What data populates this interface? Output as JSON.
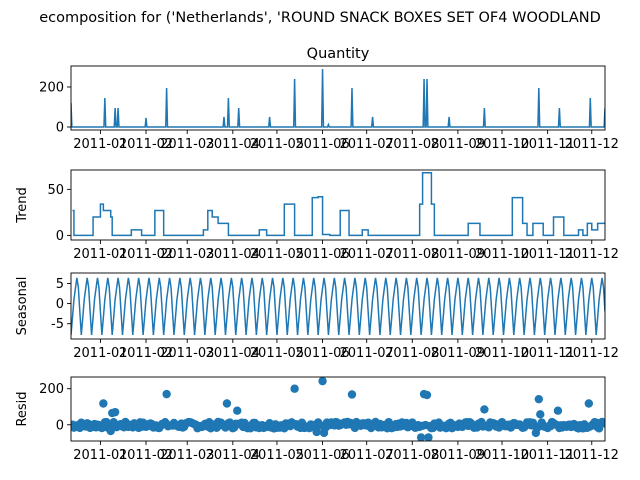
{
  "figure_title": "ecomposition for ('Netherlands', 'ROUND SNACK BOXES SET OF4 WOODLAND",
  "colors": {
    "line": "#1f77b4",
    "axis": "#000000",
    "background": "#ffffff"
  },
  "chart_data": [
    {
      "type": "line",
      "title": "Quantity",
      "ylabel": "",
      "xlim": [
        "2010-12-12",
        "2011-12-10"
      ],
      "ylim": [
        -15,
        305
      ],
      "yticks": [
        0,
        200
      ],
      "xtick_labels": [
        "2011-01",
        "2011-02",
        "2011-03",
        "2011-04",
        "2011-05",
        "2011-06",
        "2011-07",
        "2011-08",
        "2011-09",
        "2011-10",
        "2011-11",
        "2011-12"
      ],
      "series": [
        {
          "baseline": 0,
          "spikes": [
            {
              "date": "2010-12-12",
              "value": 120
            },
            {
              "date": "2011-01-04",
              "value": 145
            },
            {
              "date": "2011-01-11",
              "value": 95
            },
            {
              "date": "2011-01-13",
              "value": 95
            },
            {
              "date": "2011-02-01",
              "value": 45
            },
            {
              "date": "2011-02-15",
              "value": 195
            },
            {
              "date": "2011-03-26",
              "value": 50
            },
            {
              "date": "2011-03-29",
              "value": 145
            },
            {
              "date": "2011-04-05",
              "value": 95
            },
            {
              "date": "2011-04-26",
              "value": 50
            },
            {
              "date": "2011-05-13",
              "value": 240
            },
            {
              "date": "2011-06-01",
              "value": 290
            },
            {
              "date": "2011-06-05",
              "value": 12
            },
            {
              "date": "2011-06-21",
              "value": 195
            },
            {
              "date": "2011-07-05",
              "value": 50
            },
            {
              "date": "2011-08-09",
              "value": 240
            },
            {
              "date": "2011-08-11",
              "value": 240
            },
            {
              "date": "2011-08-26",
              "value": 50
            },
            {
              "date": "2011-09-19",
              "value": 95
            },
            {
              "date": "2011-10-26",
              "value": 195
            },
            {
              "date": "2011-11-09",
              "value": 95
            },
            {
              "date": "2011-11-30",
              "value": 145
            },
            {
              "date": "2011-12-10",
              "value": 95
            }
          ]
        }
      ]
    },
    {
      "type": "line",
      "title": "",
      "ylabel": "Trend",
      "xlim": [
        "2010-12-12",
        "2011-12-10"
      ],
      "ylim": [
        -5,
        71
      ],
      "yticks": [
        0,
        50
      ],
      "xtick_labels": [
        "2011-01",
        "2011-02",
        "2011-03",
        "2011-04",
        "2011-05",
        "2011-06",
        "2011-07",
        "2011-08",
        "2011-09",
        "2011-10",
        "2011-11",
        "2011-12"
      ],
      "series": [
        {
          "steps": [
            {
              "date": "2010-12-13",
              "value": 27
            },
            {
              "date": "2010-12-14",
              "value": 0
            },
            {
              "date": "2010-12-27",
              "value": 20
            },
            {
              "date": "2011-01-01",
              "value": 34
            },
            {
              "date": "2011-01-03",
              "value": 27
            },
            {
              "date": "2011-01-08",
              "value": 20
            },
            {
              "date": "2011-01-09",
              "value": 0
            },
            {
              "date": "2011-01-22",
              "value": 6
            },
            {
              "date": "2011-01-29",
              "value": 0
            },
            {
              "date": "2011-02-07",
              "value": 27
            },
            {
              "date": "2011-02-13",
              "value": 0
            },
            {
              "date": "2011-03-12",
              "value": 6
            },
            {
              "date": "2011-03-15",
              "value": 27
            },
            {
              "date": "2011-03-18",
              "value": 20
            },
            {
              "date": "2011-03-22",
              "value": 13
            },
            {
              "date": "2011-03-29",
              "value": 0
            },
            {
              "date": "2011-04-19",
              "value": 6
            },
            {
              "date": "2011-04-24",
              "value": 0
            },
            {
              "date": "2011-05-06",
              "value": 34
            },
            {
              "date": "2011-05-13",
              "value": 0
            },
            {
              "date": "2011-05-25",
              "value": 41
            },
            {
              "date": "2011-05-29",
              "value": 42
            },
            {
              "date": "2011-06-01",
              "value": 1
            },
            {
              "date": "2011-06-06",
              "value": 0
            },
            {
              "date": "2011-06-13",
              "value": 27
            },
            {
              "date": "2011-06-19",
              "value": 0
            },
            {
              "date": "2011-06-28",
              "value": 6
            },
            {
              "date": "2011-07-02",
              "value": 0
            },
            {
              "date": "2011-08-06",
              "value": 34
            },
            {
              "date": "2011-08-08",
              "value": 68
            },
            {
              "date": "2011-08-14",
              "value": 34
            },
            {
              "date": "2011-08-16",
              "value": 0
            },
            {
              "date": "2011-09-08",
              "value": 13
            },
            {
              "date": "2011-09-16",
              "value": 0
            },
            {
              "date": "2011-10-08",
              "value": 41
            },
            {
              "date": "2011-10-15",
              "value": 13
            },
            {
              "date": "2011-10-18",
              "value": 0
            },
            {
              "date": "2011-10-22",
              "value": 13
            },
            {
              "date": "2011-10-29",
              "value": 0
            },
            {
              "date": "2011-11-05",
              "value": 20
            },
            {
              "date": "2011-11-12",
              "value": 0
            },
            {
              "date": "2011-11-22",
              "value": 6
            },
            {
              "date": "2011-11-25",
              "value": 0
            },
            {
              "date": "2011-11-28",
              "value": 13
            },
            {
              "date": "2011-12-01",
              "value": 6
            },
            {
              "date": "2011-12-05",
              "value": 13
            },
            {
              "date": "2011-12-10",
              "value": 13
            }
          ]
        }
      ]
    },
    {
      "type": "line",
      "title": "",
      "ylabel": "Seasonal",
      "xlim": [
        "2010-12-12",
        "2011-12-10"
      ],
      "ylim": [
        -8.8,
        7.6
      ],
      "yticks": [
        -5,
        0,
        5
      ],
      "xtick_labels": [
        "2011-01",
        "2011-02",
        "2011-03",
        "2011-04",
        "2011-05",
        "2011-06",
        "2011-07",
        "2011-08",
        "2011-09",
        "2011-10",
        "2011-11",
        "2011-12"
      ],
      "series": [
        {
          "period_days": 7,
          "weekly_pattern": [
            -7.8,
            -3.5,
            1.0,
            3.8,
            6.4,
            4.0,
            -2.0
          ]
        }
      ]
    },
    {
      "type": "scatter",
      "title": "",
      "ylabel": "Resid",
      "xlim": [
        "2010-12-12",
        "2011-12-10"
      ],
      "ylim": [
        -90,
        265
      ],
      "yticks": [
        0,
        200
      ],
      "xtick_labels": [
        "2011-01",
        "2011-02",
        "2011-03",
        "2011-04",
        "2011-05",
        "2011-06",
        "2011-07",
        "2011-08",
        "2011-09",
        "2011-10",
        "2011-11",
        "2011-12"
      ],
      "series": [
        {
          "points": [
            {
              "date": "2011-01-03",
              "value": 118
            },
            {
              "date": "2011-01-09",
              "value": 65
            },
            {
              "date": "2011-01-11",
              "value": 70
            },
            {
              "date": "2011-02-15",
              "value": 170
            },
            {
              "date": "2011-03-28",
              "value": 118
            },
            {
              "date": "2011-04-04",
              "value": 78
            },
            {
              "date": "2011-05-13",
              "value": 200
            },
            {
              "date": "2011-06-01",
              "value": 242
            },
            {
              "date": "2011-06-21",
              "value": 168
            },
            {
              "date": "2011-08-09",
              "value": 170
            },
            {
              "date": "2011-08-11",
              "value": 165
            },
            {
              "date": "2011-09-19",
              "value": 85
            },
            {
              "date": "2011-10-26",
              "value": 142
            },
            {
              "date": "2011-10-27",
              "value": 58
            },
            {
              "date": "2011-11-08",
              "value": 78
            },
            {
              "date": "2011-11-29",
              "value": 118
            }
          ],
          "noise_band": [
            -40,
            30
          ],
          "dips": [
            {
              "date": "2011-08-07",
              "value": -70
            },
            {
              "date": "2011-08-12",
              "value": -70
            },
            {
              "date": "2011-06-02",
              "value": -45
            },
            {
              "date": "2011-05-28",
              "value": -40
            },
            {
              "date": "2011-10-24",
              "value": -45
            },
            {
              "date": "2011-01-08",
              "value": -35
            }
          ]
        }
      ]
    }
  ]
}
